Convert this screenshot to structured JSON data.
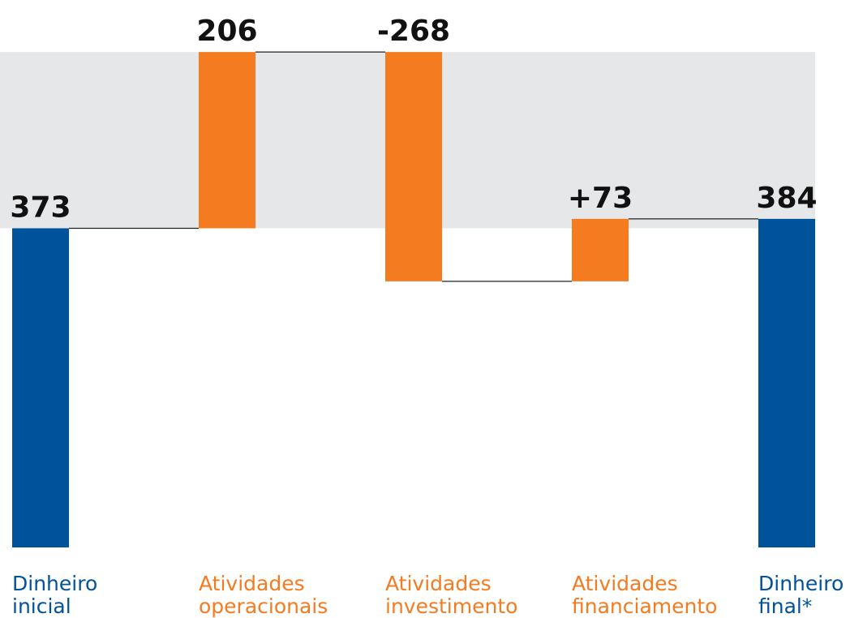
{
  "chart_data": {
    "type": "waterfall",
    "categories": [
      [
        "Dinheiro",
        "inicial"
      ],
      [
        "Atividades",
        "operacionais"
      ],
      [
        "Atividades",
        "investimento"
      ],
      [
        "Atividades",
        "financiamento"
      ],
      [
        "Dinheiro",
        "final*"
      ]
    ],
    "values": [
      373,
      206,
      -268,
      73,
      384
    ],
    "value_labels": [
      "373",
      "206",
      "-268",
      "+73",
      "384"
    ],
    "measure": [
      "absolute",
      "relative",
      "relative",
      "relative",
      "absolute"
    ],
    "colors": [
      "#00539b",
      "#f47b20",
      "#f47b20",
      "#f47b20",
      "#00539b"
    ],
    "band_color": "#e6e7e9",
    "ylim": [
      0,
      600
    ]
  }
}
